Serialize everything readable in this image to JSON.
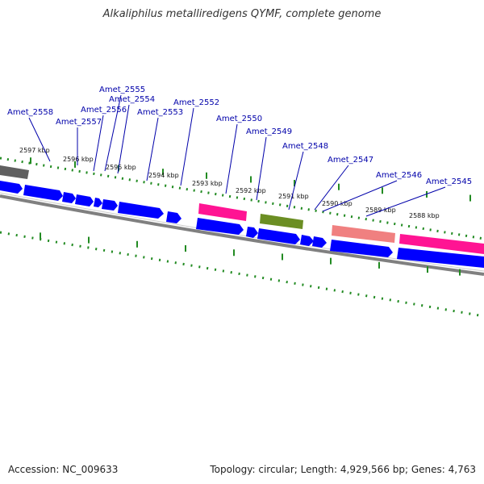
{
  "title": "Alkaliphilus metalliredigens QYMF, complete genome",
  "footer": {
    "accession": "Accession: NC_009633",
    "topology": "Topology: circular; Length: 4,929,566 bp; Genes: 4,763"
  },
  "colors": {
    "gene_label": "#0000aa",
    "forward_gene": "#0000ff",
    "ruler": "#228b22",
    "backbone": "#808080",
    "pink_feature": "#ff1493",
    "olive_feature": "#6b8e23",
    "salmon_feature": "#f08080",
    "grey_feature": "#606060"
  },
  "kbp_ticks": [
    "2597 kbp",
    "2596 kbp",
    "2595 kbp",
    "2594 kbp",
    "2593 kbp",
    "2592 kbp",
    "2591 kbp",
    "2590 kbp",
    "2589 kbp",
    "2588 kbp"
  ],
  "gene_labels": [
    "Amet_2558",
    "Amet_2557",
    "Amet_2556",
    "Amet_2555",
    "Amet_2554",
    "Amet_2553",
    "Amet_2552",
    "Amet_2550",
    "Amet_2549",
    "Amet_2548",
    "Amet_2547",
    "Amet_2546",
    "Amet_2545"
  ]
}
